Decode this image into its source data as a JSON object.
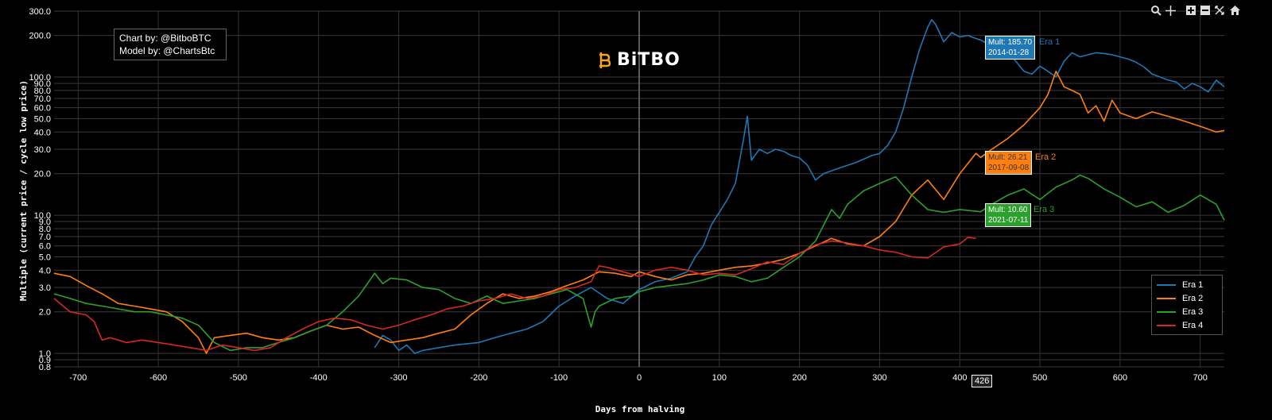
{
  "credits": {
    "line1": "Chart by: @BitboBTC",
    "line2": "Model by: @ChartsBtc"
  },
  "brand": {
    "name": "BiTBO",
    "logo_icon": "bitbo-logo-icon",
    "color": "#f7a21b"
  },
  "toolbar": {
    "icons": [
      "zoom-icon",
      "pan-icon",
      "zoom-in-icon",
      "zoom-out-icon",
      "autoscale-icon",
      "reset-axes-icon"
    ]
  },
  "hover": {
    "day_label": "426",
    "era1": {
      "text": "Mult: 185.70",
      "date": "2014-01-28",
      "name": "Era 1"
    },
    "era2": {
      "text": "Mult: 26.21",
      "date": "2017-09-08",
      "name": "Era 2"
    },
    "era3": {
      "text": "Mult: 10.60",
      "date": "2021-07-11",
      "name": "Era 3"
    }
  },
  "chart_data": {
    "type": "line",
    "title": "",
    "xlabel": "Days from halving",
    "ylabel": "Multiple (current price / cycle low price)",
    "xlim": [
      -730,
      730
    ],
    "ylim": [
      0.8,
      300
    ],
    "y_scale": "log",
    "grid": true,
    "legend_position": "bottom-right",
    "x_ticks": [
      -700,
      -600,
      -500,
      -400,
      -300,
      -200,
      -100,
      0,
      100,
      200,
      300,
      400,
      500,
      600,
      700
    ],
    "y_ticks": [
      0.8,
      0.9,
      1.0,
      2.0,
      3.0,
      4.0,
      5.0,
      6.0,
      7.0,
      8.0,
      9.0,
      10.0,
      20.0,
      30.0,
      40.0,
      50.0,
      60.0,
      70.0,
      80.0,
      90.0,
      100.0,
      200.0,
      300.0
    ],
    "y_tick_labels": [
      "0.8",
      "0.9",
      "1.0",
      "2.0",
      "3.0",
      "4.0",
      "5.0",
      "6.0",
      "7.0",
      "8.0",
      "9.0",
      "10.0",
      "20.0",
      "30.0",
      "40.0",
      "50.0",
      "60.0",
      "70.0",
      "80.0",
      "90.0",
      "100.0",
      "200.0",
      "300.0"
    ],
    "series": [
      {
        "name": "Era 1",
        "color": "#1f77b4",
        "x": [
          -330,
          -320,
          -310,
          -300,
          -290,
          -280,
          -270,
          -250,
          -230,
          -200,
          -180,
          -160,
          -140,
          -120,
          -100,
          -80,
          -60,
          -40,
          -20,
          0,
          20,
          40,
          60,
          70,
          80,
          90,
          100,
          110,
          120,
          130,
          135,
          140,
          150,
          160,
          170,
          180,
          190,
          200,
          210,
          220,
          230,
          250,
          270,
          290,
          300,
          310,
          320,
          330,
          340,
          350,
          360,
          365,
          370,
          380,
          390,
          400,
          410,
          420,
          426,
          430,
          440,
          450,
          460,
          470,
          480,
          490,
          500,
          510,
          520,
          530,
          540,
          550,
          560,
          570,
          580,
          590,
          600,
          610,
          620,
          630,
          640,
          650,
          660,
          670,
          680,
          690,
          700,
          710,
          720,
          730
        ],
        "y": [
          1.1,
          1.35,
          1.25,
          1.05,
          1.15,
          1.0,
          1.05,
          1.1,
          1.15,
          1.2,
          1.3,
          1.4,
          1.5,
          1.7,
          2.2,
          2.6,
          3.0,
          2.5,
          2.3,
          2.9,
          3.3,
          3.5,
          3.9,
          5.0,
          6.0,
          8.5,
          10.5,
          13.0,
          17.0,
          35.0,
          52.0,
          25.0,
          30.0,
          28.0,
          30.0,
          29.0,
          27.0,
          26.0,
          23.0,
          18.0,
          20.0,
          22.0,
          24.0,
          27.0,
          28.0,
          32.0,
          40.0,
          60.0,
          100.0,
          160.0,
          230.0,
          260.0,
          240.0,
          180.0,
          210.0,
          195.0,
          200.0,
          190.0,
          185.7,
          180.0,
          170.0,
          160.0,
          150.0,
          130.0,
          110.0,
          105.0,
          120.0,
          110.0,
          100.0,
          130.0,
          150.0,
          140.0,
          145.0,
          150.0,
          148.0,
          145.0,
          140.0,
          135.0,
          128.0,
          118.0,
          105.0,
          100.0,
          95.0,
          92.0,
          82.0,
          90.0,
          85.0,
          78.0,
          95.0,
          85.0
        ]
      },
      {
        "name": "Era 2",
        "color": "#ff7f0e",
        "x": [
          -730,
          -710,
          -690,
          -670,
          -650,
          -630,
          -610,
          -590,
          -570,
          -550,
          -540,
          -530,
          -510,
          -490,
          -470,
          -450,
          -430,
          -410,
          -390,
          -370,
          -350,
          -330,
          -310,
          -290,
          -270,
          -250,
          -230,
          -210,
          -190,
          -170,
          -150,
          -130,
          -110,
          -90,
          -70,
          -50,
          -30,
          -10,
          0,
          20,
          40,
          60,
          80,
          100,
          120,
          140,
          160,
          180,
          200,
          220,
          240,
          260,
          280,
          300,
          320,
          340,
          360,
          380,
          400,
          420,
          426,
          440,
          460,
          480,
          500,
          510,
          520,
          530,
          540,
          550,
          560,
          570,
          580,
          590,
          600,
          620,
          640,
          660,
          680,
          700,
          720,
          730
        ],
        "y": [
          3.8,
          3.6,
          3.1,
          2.7,
          2.3,
          2.2,
          2.1,
          2.0,
          1.7,
          1.3,
          1.0,
          1.3,
          1.35,
          1.4,
          1.3,
          1.25,
          1.3,
          1.45,
          1.6,
          1.5,
          1.55,
          1.35,
          1.2,
          1.25,
          1.3,
          1.4,
          1.5,
          1.9,
          2.3,
          2.7,
          2.5,
          2.6,
          2.8,
          3.1,
          3.4,
          3.9,
          3.8,
          3.6,
          3.9,
          3.6,
          3.4,
          3.7,
          3.8,
          4.0,
          4.2,
          4.3,
          4.5,
          4.8,
          5.3,
          6.0,
          6.8,
          6.2,
          6.0,
          7.0,
          9.0,
          14.0,
          18.0,
          13.0,
          20.0,
          28.0,
          26.21,
          30.0,
          36.0,
          45.0,
          60.0,
          75.0,
          110.0,
          85.0,
          80.0,
          75.0,
          55.0,
          62.0,
          48.0,
          68.0,
          55.0,
          50.0,
          56.0,
          52.0,
          48.0,
          44.0,
          40.0,
          41.0
        ]
      },
      {
        "name": "Era 3",
        "color": "#2ca02c",
        "x": [
          -730,
          -710,
          -690,
          -670,
          -650,
          -630,
          -610,
          -590,
          -570,
          -550,
          -530,
          -510,
          -490,
          -470,
          -450,
          -430,
          -410,
          -390,
          -370,
          -350,
          -330,
          -320,
          -310,
          -290,
          -270,
          -250,
          -230,
          -210,
          -190,
          -170,
          -150,
          -130,
          -110,
          -90,
          -70,
          -60,
          -55,
          -50,
          -30,
          -10,
          0,
          20,
          40,
          60,
          80,
          100,
          120,
          140,
          160,
          180,
          200,
          220,
          240,
          250,
          260,
          280,
          300,
          320,
          340,
          360,
          380,
          400,
          426,
          440,
          460,
          480,
          500,
          520,
          540,
          550,
          560,
          580,
          600,
          620,
          640,
          660,
          680,
          700,
          720,
          730
        ],
        "y": [
          2.7,
          2.5,
          2.3,
          2.2,
          2.1,
          2.0,
          2.0,
          1.9,
          1.8,
          1.6,
          1.2,
          1.05,
          1.1,
          1.1,
          1.2,
          1.3,
          1.45,
          1.6,
          2.0,
          2.6,
          3.8,
          3.2,
          3.5,
          3.4,
          3.0,
          2.9,
          2.5,
          2.3,
          2.6,
          2.3,
          2.4,
          2.5,
          2.7,
          2.9,
          2.5,
          1.55,
          2.0,
          2.2,
          2.5,
          2.6,
          2.8,
          3.0,
          3.1,
          3.2,
          3.4,
          3.7,
          3.6,
          3.3,
          3.5,
          4.2,
          5.0,
          6.5,
          11.0,
          9.5,
          12.0,
          15.0,
          17.0,
          19.0,
          14.0,
          11.0,
          10.5,
          11.0,
          10.6,
          12.0,
          14.0,
          15.5,
          13.0,
          16.0,
          18.0,
          19.5,
          18.5,
          15.5,
          13.5,
          11.5,
          12.5,
          10.5,
          11.8,
          14.0,
          12.0,
          9.2
        ]
      },
      {
        "name": "Era 4",
        "color": "#d62728",
        "x": [
          -730,
          -710,
          -690,
          -680,
          -670,
          -660,
          -640,
          -620,
          -600,
          -580,
          -560,
          -540,
          -520,
          -500,
          -480,
          -460,
          -440,
          -420,
          -400,
          -380,
          -360,
          -340,
          -320,
          -300,
          -280,
          -260,
          -240,
          -220,
          -200,
          -180,
          -160,
          -140,
          -120,
          -100,
          -80,
          -60,
          -50,
          -40,
          -20,
          0,
          20,
          40,
          60,
          80,
          100,
          120,
          140,
          160,
          180,
          200,
          220,
          240,
          260,
          280,
          300,
          320,
          340,
          360,
          380,
          400,
          410,
          420
        ],
        "y": [
          2.5,
          2.0,
          1.9,
          1.7,
          1.25,
          1.3,
          1.2,
          1.25,
          1.2,
          1.15,
          1.1,
          1.05,
          1.15,
          1.1,
          1.05,
          1.1,
          1.3,
          1.5,
          1.7,
          1.8,
          1.75,
          1.6,
          1.5,
          1.6,
          1.75,
          1.9,
          2.1,
          2.2,
          2.4,
          2.5,
          2.7,
          2.5,
          2.6,
          2.9,
          3.0,
          3.3,
          4.3,
          4.2,
          3.9,
          3.6,
          4.0,
          4.2,
          4.0,
          3.7,
          3.8,
          3.7,
          4.1,
          4.6,
          4.4,
          5.3,
          6.1,
          6.5,
          6.3,
          6.0,
          5.6,
          5.4,
          5.0,
          4.9,
          5.9,
          6.2,
          6.9,
          6.8
        ]
      }
    ]
  }
}
